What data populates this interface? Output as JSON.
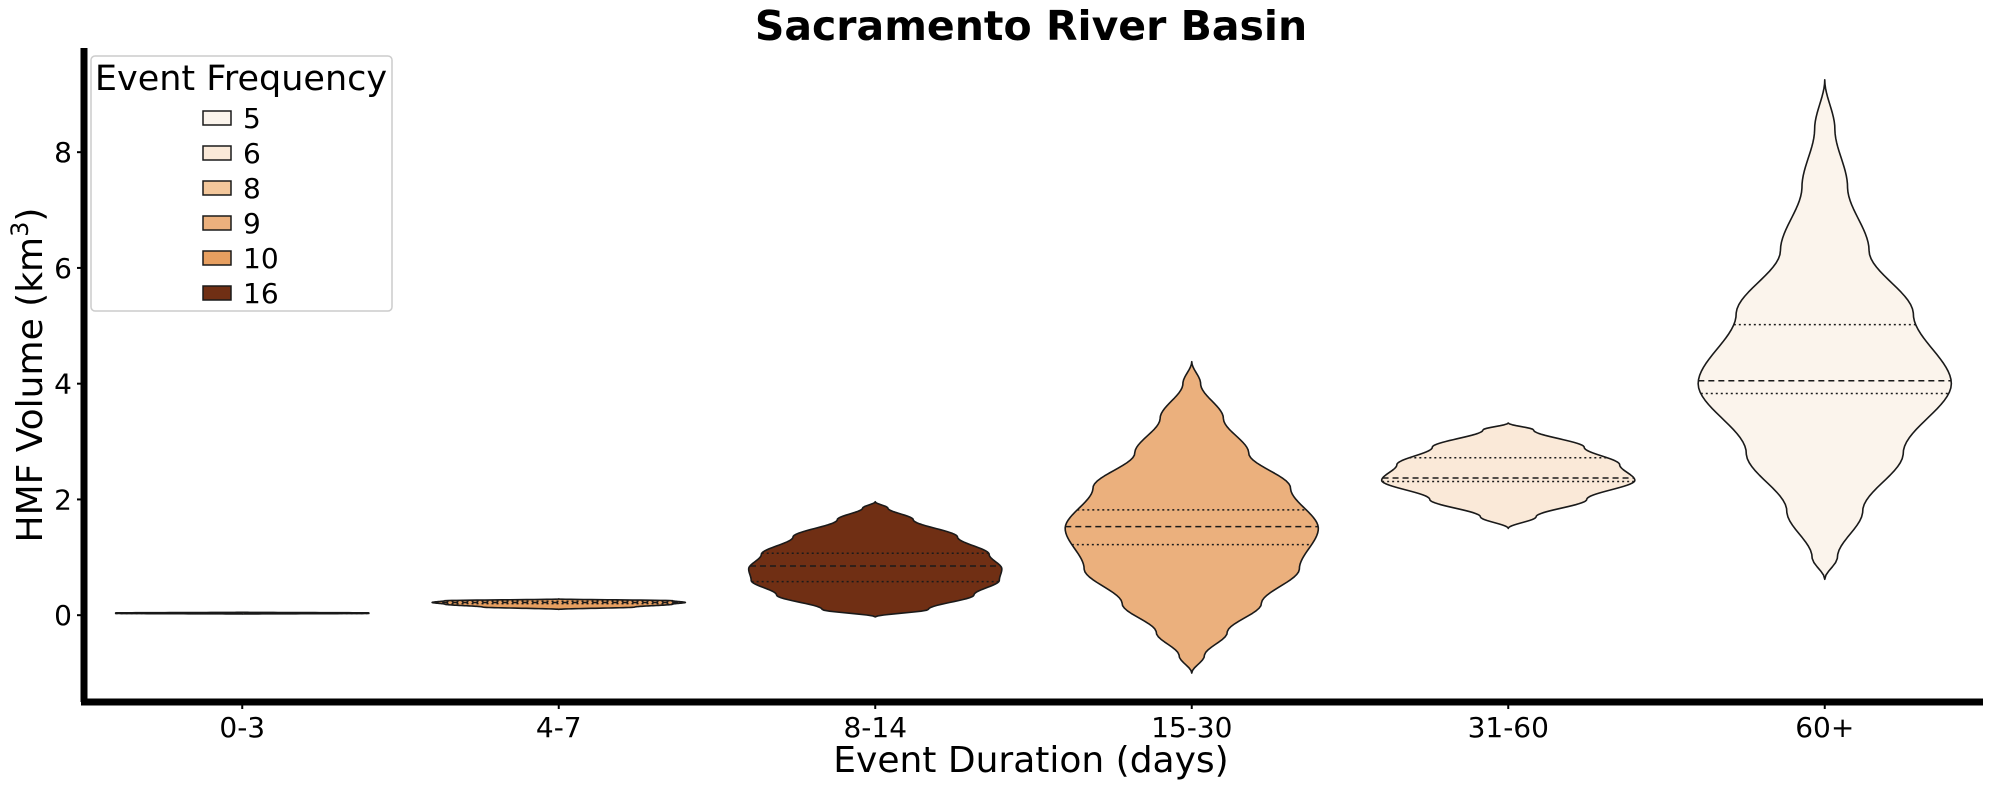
{
  "chart_data": {
    "type": "violin",
    "title": "Sacramento River Basin",
    "xlabel": "Event Duration (days)",
    "ylabel": "HMF Volume (km³)",
    "ylabel_base": "HMF Volume (km",
    "ylabel_sup": "3",
    "ylabel_close": ")",
    "ylim": [
      -1.5,
      9.8
    ],
    "yticks": [
      0,
      2,
      4,
      6,
      8
    ],
    "grid": false,
    "legend": {
      "title": "Event Frequency",
      "placement": "top-left",
      "entries": [
        {
          "label": "5",
          "color": "#fbf4ec"
        },
        {
          "label": "6",
          "color": "#fae9d8"
        },
        {
          "label": "8",
          "color": "#f3c79b"
        },
        {
          "label": "9",
          "color": "#ebb07d"
        },
        {
          "label": "10",
          "color": "#e79f60"
        },
        {
          "label": "16",
          "color": "#702f14"
        }
      ]
    },
    "categories": [
      "0-3",
      "4-7",
      "8-14",
      "15-30",
      "31-60",
      "60+"
    ],
    "violins": [
      {
        "category": "0-3",
        "frequency": 5,
        "color": "#fbf4ec",
        "profile": [
          [
            0.02,
            0.0
          ],
          [
            0.03,
            1.0
          ],
          [
            0.04,
            1.0
          ],
          [
            0.05,
            0.0
          ]
        ],
        "median": 0.035,
        "q1": 0.03,
        "q3": 0.04
      },
      {
        "category": "4-7",
        "frequency": 10,
        "color": "#e79f60",
        "profile": [
          [
            0.1,
            0.0
          ],
          [
            0.14,
            0.6
          ],
          [
            0.19,
            0.9
          ],
          [
            0.22,
            1.0
          ],
          [
            0.25,
            0.9
          ],
          [
            0.28,
            0.0
          ]
        ],
        "median": 0.22,
        "q1": 0.2,
        "q3": 0.24
      },
      {
        "category": "8-14",
        "frequency": 16,
        "color": "#702f14",
        "profile": [
          [
            -0.03,
            0.0
          ],
          [
            0.1,
            0.42
          ],
          [
            0.35,
            0.78
          ],
          [
            0.6,
            0.98
          ],
          [
            0.8,
            1.0
          ],
          [
            1.05,
            0.9
          ],
          [
            1.35,
            0.65
          ],
          [
            1.65,
            0.3
          ],
          [
            1.85,
            0.1
          ],
          [
            1.96,
            0.0
          ]
        ],
        "median": 0.85,
        "q1": 0.58,
        "q3": 1.07
      },
      {
        "category": "15-30",
        "frequency": 9,
        "color": "#ebb07d",
        "profile": [
          [
            -1.0,
            0.0
          ],
          [
            -0.7,
            0.1
          ],
          [
            -0.3,
            0.28
          ],
          [
            0.2,
            0.55
          ],
          [
            0.8,
            0.85
          ],
          [
            1.5,
            1.0
          ],
          [
            2.2,
            0.78
          ],
          [
            2.8,
            0.45
          ],
          [
            3.4,
            0.25
          ],
          [
            4.0,
            0.07
          ],
          [
            4.38,
            0.0
          ]
        ],
        "median": 1.53,
        "q1": 1.22,
        "q3": 1.82
      },
      {
        "category": "31-60",
        "frequency": 6,
        "color": "#fae9d8",
        "profile": [
          [
            1.5,
            0.0
          ],
          [
            1.7,
            0.22
          ],
          [
            2.0,
            0.62
          ],
          [
            2.33,
            1.0
          ],
          [
            2.6,
            0.88
          ],
          [
            2.9,
            0.6
          ],
          [
            3.2,
            0.2
          ],
          [
            3.32,
            0.0
          ]
        ],
        "median": 2.37,
        "q1": 2.31,
        "q3": 2.72
      },
      {
        "category": "60+",
        "frequency": 5,
        "color": "#fbf4ec",
        "profile": [
          [
            0.62,
            0.0
          ],
          [
            1.0,
            0.1
          ],
          [
            1.8,
            0.3
          ],
          [
            2.8,
            0.62
          ],
          [
            4.0,
            1.0
          ],
          [
            5.2,
            0.7
          ],
          [
            6.3,
            0.35
          ],
          [
            7.4,
            0.18
          ],
          [
            8.4,
            0.08
          ],
          [
            9.25,
            0.0
          ]
        ],
        "median": 4.05,
        "q1": 3.83,
        "q3": 5.02
      }
    ]
  }
}
